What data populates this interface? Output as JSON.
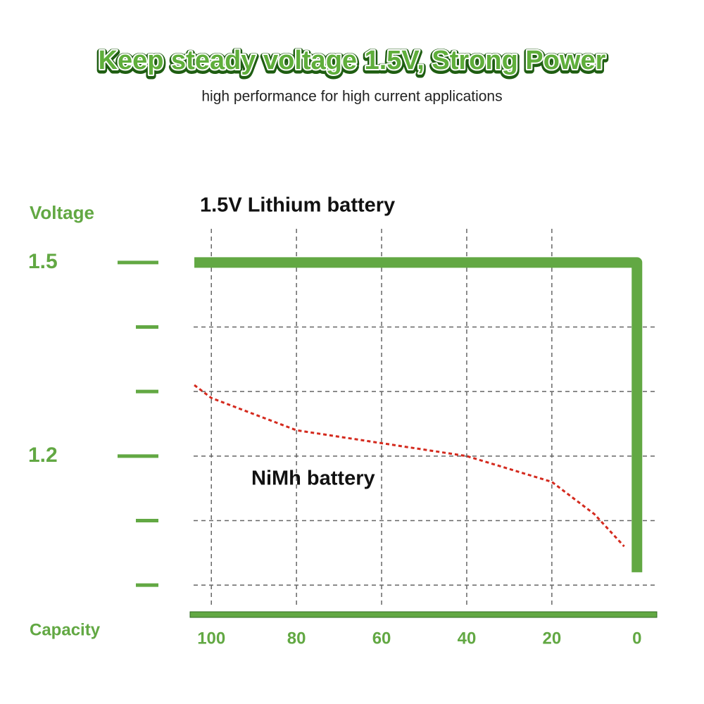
{
  "chart_data": {
    "type": "line",
    "title": "Keep steady voltage 1.5V, Strong Power",
    "subtitle": "high performance for high current applications",
    "y_label": "Voltage",
    "x_label": "Capacity",
    "xlim": [
      105,
      -5
    ],
    "xticks": [
      100,
      80,
      60,
      40,
      20,
      0
    ],
    "ylim": [
      0.95,
      1.55
    ],
    "yticks": [
      1.5,
      1.2
    ],
    "minor_yticks": [
      1.4,
      1.3,
      1.1,
      1.0
    ],
    "grid": true,
    "axis_color": "#62a843",
    "series": [
      {
        "name": "1.5V Lithium battery",
        "color": "#62a843",
        "x": [
          104,
          0,
          0
        ],
        "values": [
          1.5,
          1.5,
          1.02
        ]
      },
      {
        "name": "NiMh battery",
        "color": "#d42a1e",
        "x": [
          104,
          100,
          80,
          60,
          40,
          20,
          10,
          3
        ],
        "values": [
          1.31,
          1.29,
          1.24,
          1.22,
          1.2,
          1.16,
          1.11,
          1.06
        ]
      }
    ]
  }
}
